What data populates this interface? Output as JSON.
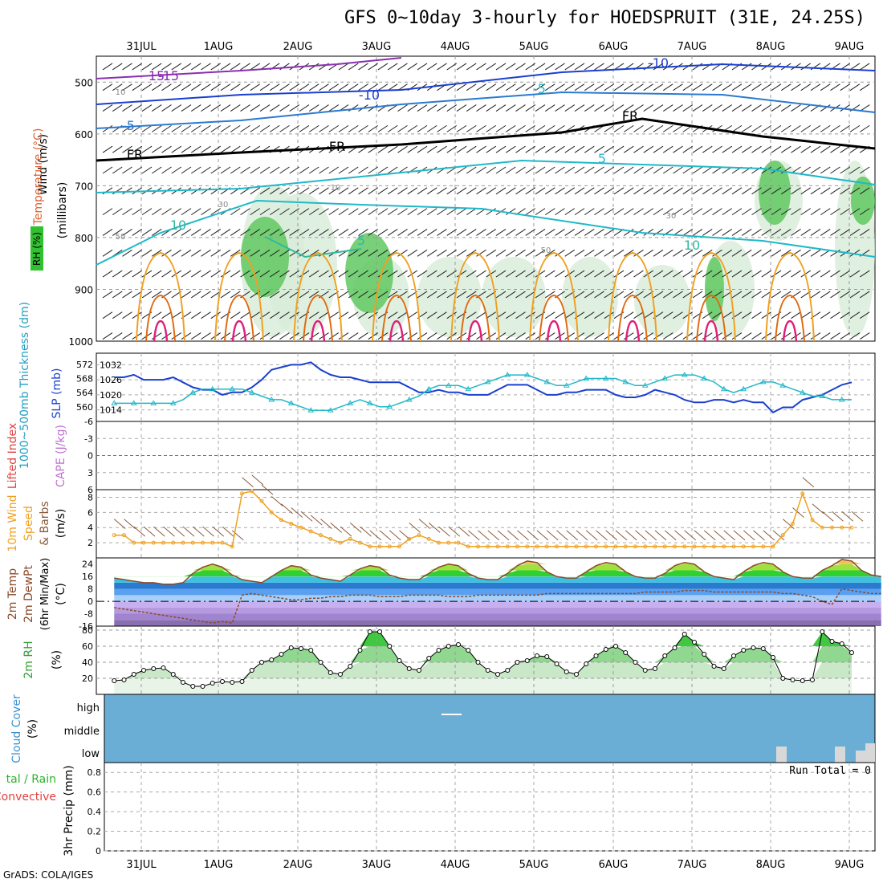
{
  "title": "GFS 0~10day 3-hourly for HOEDSPRUIT (31E, 24.25S)",
  "credit": "GrADS: COLA/IGES",
  "dates": [
    "31JUL",
    "1AUG",
    "2AUG",
    "3AUG",
    "4AUG",
    "5AUG",
    "6AUG",
    "7AUG",
    "8AUG",
    "9AUG"
  ],
  "colors": {
    "accent_blue": "#1a3fcf",
    "cyan": "#20b8c8",
    "orange": "#f0a020",
    "green": "#30c030",
    "purple": "#8a2fb0",
    "cloud_bg": "#6aaed6",
    "pink": "#e0207a"
  },
  "chart_data": [
    {
      "type": "contour",
      "panel": "upper-air",
      "ylabel_parts": [
        "RH (%)",
        "Temperature (°C)",
        "Wind (m/s)"
      ],
      "ylabel_units": "(millibars)",
      "yticks": [
        500,
        600,
        700,
        800,
        900,
        1000
      ],
      "ylim": [
        1000,
        450
      ],
      "temperature_labels": [
        "-15",
        "-10",
        "-10",
        "-5",
        "-5",
        "FR",
        "FR",
        "FR",
        "5",
        "5",
        "10",
        "10",
        "15"
      ],
      "rh_labels": [
        "10",
        "10",
        "30",
        "30",
        "50",
        "50"
      ]
    },
    {
      "type": "line",
      "panel": "thickness-slp",
      "ylabel_left": "1000~500mb Thickness (dm)",
      "ylabel_right": "SLP (mb)",
      "left_ticks": [
        560,
        564,
        568,
        572
      ],
      "right_ticks": [
        1014,
        1020,
        1026,
        1032
      ],
      "series": [
        {
          "name": "SLP",
          "color": "#1a3fcf",
          "values": [
            1027,
            1027,
            1028,
            1026,
            1026,
            1026,
            1027,
            1025,
            1023,
            1022,
            1022,
            1020,
            1021,
            1021,
            1023,
            1026,
            1030,
            1031,
            1032,
            1032,
            1033,
            1030,
            1028,
            1027,
            1027,
            1026,
            1025,
            1025,
            1025,
            1025,
            1023,
            1021,
            1021,
            1022,
            1021,
            1021,
            1020,
            1020,
            1020,
            1022,
            1024,
            1024,
            1024,
            1022,
            1020,
            1020,
            1021,
            1021,
            1022,
            1022,
            1022,
            1020,
            1019,
            1019,
            1020,
            1022,
            1021,
            1020,
            1018,
            1017,
            1017,
            1018,
            1018,
            1017,
            1018,
            1017,
            1017,
            1013,
            1015,
            1015,
            1018,
            1019,
            1020,
            1022,
            1024,
            1025
          ]
        },
        {
          "name": "Thickness",
          "color": "#20b8c8",
          "values": [
            561,
            561,
            561,
            561,
            561,
            561,
            561,
            562,
            564,
            565,
            565,
            565,
            565,
            565,
            564,
            563,
            562,
            562,
            561,
            560,
            559,
            559,
            559,
            560,
            561,
            562,
            561,
            560,
            560,
            561,
            562,
            563,
            565,
            566,
            566,
            566,
            565,
            566,
            567,
            568,
            569,
            569,
            569,
            568,
            567,
            566,
            566,
            567,
            568,
            568,
            568,
            568,
            567,
            566,
            566,
            567,
            568,
            569,
            569,
            569,
            568,
            567,
            565,
            564,
            565,
            566,
            567,
            567,
            566,
            565,
            564,
            563,
            563,
            562,
            562,
            562
          ]
        }
      ]
    },
    {
      "type": "line",
      "panel": "stability",
      "ylabel_left": "Lifted Index",
      "ylabel_right": "CAPE (J/kg)",
      "ticks": [
        "-6",
        "-3",
        "0",
        "3",
        "6"
      ],
      "ylim": [
        -6,
        6
      ]
    },
    {
      "type": "line",
      "panel": "10m-wind",
      "ylabel": "10m Wind Speed (m/s) & Barbs",
      "ticks": [
        2,
        4,
        6,
        8
      ],
      "ylim": [
        0,
        9
      ],
      "series": [
        {
          "name": "Speed",
          "color": "#f0a020",
          "values": [
            3,
            3,
            2,
            2,
            2,
            2,
            2,
            2,
            2,
            2,
            2,
            2,
            1.5,
            8.5,
            8.8,
            7.5,
            6,
            5,
            4.5,
            4,
            3.5,
            3,
            2.5,
            2,
            2.5,
            2,
            1.5,
            1.5,
            1.5,
            1.5,
            2.5,
            3,
            2.5,
            2,
            2,
            2,
            1.5,
            1.5,
            1.5,
            1.5,
            1.5,
            1.5,
            1.5,
            1.5,
            1.5,
            1.5,
            1.5,
            1.5,
            1.5,
            1.5,
            1.5,
            1.5,
            1.5,
            1.5,
            1.5,
            1.5,
            1.5,
            1.5,
            1.5,
            1.5,
            1.5,
            1.5,
            1.5,
            1.5,
            1.5,
            1.5,
            1.5,
            1.5,
            3,
            4.5,
            8.5,
            5,
            4,
            4,
            4,
            4
          ]
        }
      ]
    },
    {
      "type": "area",
      "panel": "temperature",
      "ylabel": "2m Temp 2m DewPt (6hr Min/Max) (°C)",
      "ticks": [
        -16,
        -8,
        0,
        8,
        16,
        24
      ],
      "ylim": [
        -16,
        28
      ],
      "series": [
        {
          "name": "2m Temp",
          "values": [
            15,
            14,
            13,
            12,
            12,
            11,
            11,
            12,
            18,
            22,
            24,
            22,
            17,
            14,
            13,
            12,
            16,
            20,
            23,
            22,
            17,
            15,
            14,
            13,
            17,
            21,
            23,
            22,
            17,
            15,
            14,
            14,
            18,
            22,
            24,
            23,
            18,
            15,
            14,
            14,
            18,
            23,
            26,
            25,
            19,
            16,
            15,
            15,
            19,
            23,
            25,
            24,
            19,
            16,
            15,
            15,
            18,
            23,
            25,
            24,
            19,
            16,
            15,
            14,
            19,
            23,
            25,
            24,
            19,
            16,
            15,
            15,
            20,
            23,
            27,
            26,
            20,
            17,
            16
          ]
        },
        {
          "name": "2m DewPt",
          "values": [
            -4,
            -5,
            -6,
            -7,
            -8,
            -9,
            -10,
            -11,
            -12,
            -13,
            -14,
            -13,
            -14,
            4,
            5,
            4,
            3,
            2,
            1,
            1,
            2,
            2,
            3,
            3,
            4,
            4,
            4,
            3,
            3,
            3,
            4,
            4,
            4,
            4,
            3,
            3,
            3,
            4,
            4,
            4,
            4,
            4,
            4,
            4,
            5,
            5,
            5,
            5,
            5,
            5,
            5,
            5,
            5,
            5,
            6,
            6,
            6,
            6,
            7,
            7,
            7,
            6,
            6,
            6,
            6,
            6,
            6,
            6,
            5,
            5,
            4,
            3,
            0,
            -2,
            8,
            7,
            6,
            5,
            5
          ]
        }
      ]
    },
    {
      "type": "area",
      "panel": "2m-rh",
      "ylabel": "2m RH (%)",
      "ticks": [
        20,
        40,
        60,
        80
      ],
      "ylim": [
        0,
        85
      ],
      "series": [
        {
          "name": "2m RH",
          "values": [
            17,
            18,
            25,
            30,
            32,
            33,
            25,
            15,
            10,
            10,
            14,
            16,
            15,
            16,
            30,
            40,
            43,
            50,
            58,
            57,
            55,
            40,
            27,
            25,
            35,
            55,
            78,
            78,
            60,
            42,
            32,
            30,
            45,
            55,
            60,
            62,
            55,
            40,
            30,
            25,
            30,
            40,
            42,
            48,
            47,
            38,
            28,
            25,
            38,
            48,
            56,
            60,
            52,
            40,
            30,
            32,
            48,
            58,
            75,
            65,
            50,
            35,
            32,
            48,
            55,
            58,
            57,
            46,
            20,
            18,
            17,
            18,
            78,
            66,
            63,
            52
          ]
        }
      ]
    },
    {
      "type": "heatmap",
      "panel": "cloud-cover",
      "ylabel": "Cloud Cover (%)",
      "levels": [
        "high",
        "middle",
        "low"
      ]
    },
    {
      "type": "bar",
      "panel": "precip",
      "ylabel_left": "Total / Rain Convective",
      "ylabel_right": "3hr Precip (mm)",
      "ticks": [
        "0",
        "0.2",
        "0.4",
        "0.6",
        "0.8"
      ],
      "ylim": [
        0,
        0.9
      ],
      "run_total": "Run Total = 0",
      "values": []
    }
  ]
}
